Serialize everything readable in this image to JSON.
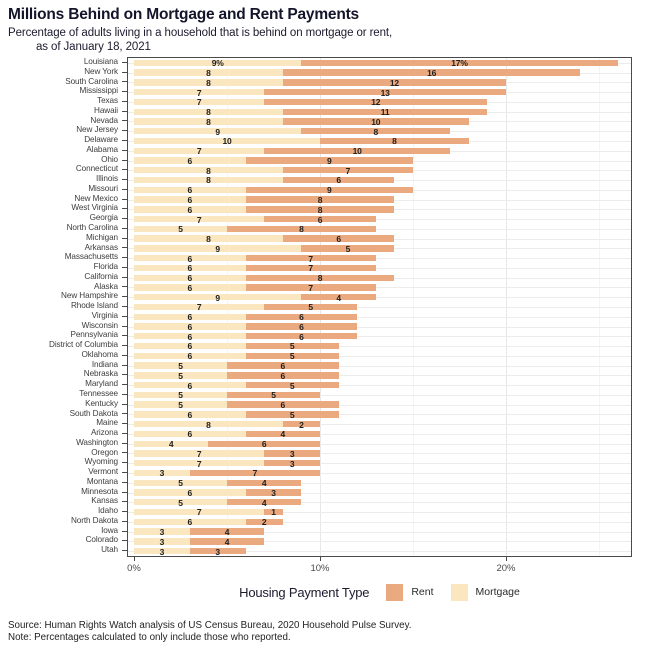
{
  "header": {
    "title": "Millions Behind on Mortgage and Rent Payments",
    "subtitle_line1": "Percentage of adults living in a household that is behind on mortgage or rent,",
    "subtitle_line2": "as of January 18, 2021"
  },
  "legend": {
    "title": "Housing Payment Type",
    "items": [
      {
        "label": "Rent",
        "color": "#eaa97e"
      },
      {
        "label": "Mortgage",
        "color": "#fae6bf"
      }
    ]
  },
  "footer": {
    "source": "Source: Human Rights Watch analysis of US Census Bureau, 2020 Household Pulse Survey.",
    "note": "Note: Percentages calculated to only include those who reported."
  },
  "colors": {
    "rent": "#eaa97e",
    "mortgage": "#fae6bf",
    "panel_border": "#4a4a4a",
    "major_grid": "#e7e7e7",
    "minor_grid": "#f4f4f4",
    "row_grid": "#ececec"
  },
  "chart_data": {
    "type": "bar",
    "orientation": "horizontal",
    "stacked": true,
    "title": "Millions Behind on Mortgage and Rent Payments",
    "xlabel": "",
    "ylabel": "",
    "xlim": [
      0,
      26.8
    ],
    "x_ticks": [
      0,
      10,
      20
    ],
    "x_tick_labels": [
      "0%",
      "10%",
      "20%"
    ],
    "x_minor_gridlines": [
      5,
      15,
      25
    ],
    "grid": true,
    "legend_position": "bottom",
    "value_label_suffix_row0": "%",
    "categories": [
      "Louisiana",
      "New York",
      "South Carolina",
      "Mississippi",
      "Texas",
      "Hawaii",
      "Nevada",
      "New Jersey",
      "Delaware",
      "Alabama",
      "Ohio",
      "Connecticut",
      "Illinois",
      "Missouri",
      "New Mexico",
      "West Virginia",
      "Georgia",
      "North Carolina",
      "Michigan",
      "Arkansas",
      "Massachusetts",
      "Florida",
      "California",
      "Alaska",
      "New Hampshire",
      "Rhode Island",
      "Virginia",
      "Wisconsin",
      "Pennsylvania",
      "District of Columbia",
      "Oklahoma",
      "Indiana",
      "Nebraska",
      "Maryland",
      "Tennessee",
      "Kentucky",
      "South Dakota",
      "Maine",
      "Arizona",
      "Washington",
      "Oregon",
      "Wyoming",
      "Vermont",
      "Montana",
      "Minnesota",
      "Kansas",
      "Idaho",
      "North Dakota",
      "Iowa",
      "Colorado",
      "Utah"
    ],
    "series": [
      {
        "name": "Mortgage",
        "color": "#fae6bf",
        "values": [
          9,
          8,
          8,
          7,
          7,
          8,
          8,
          9,
          10,
          7,
          6,
          8,
          8,
          6,
          6,
          6,
          7,
          5,
          8,
          9,
          6,
          6,
          6,
          6,
          9,
          7,
          6,
          6,
          6,
          6,
          6,
          5,
          5,
          6,
          5,
          5,
          6,
          8,
          6,
          4,
          7,
          7,
          3,
          5,
          6,
          5,
          7,
          6,
          3,
          3,
          3
        ]
      },
      {
        "name": "Rent",
        "color": "#eaa97e",
        "values": [
          17,
          16,
          12,
          13,
          12,
          11,
          10,
          8,
          8,
          10,
          9,
          7,
          6,
          9,
          8,
          8,
          6,
          8,
          6,
          5,
          7,
          7,
          8,
          7,
          4,
          5,
          6,
          6,
          6,
          5,
          5,
          6,
          6,
          5,
          5,
          6,
          5,
          2,
          4,
          6,
          3,
          3,
          7,
          4,
          3,
          4,
          1,
          2,
          4,
          4,
          3
        ]
      }
    ]
  }
}
